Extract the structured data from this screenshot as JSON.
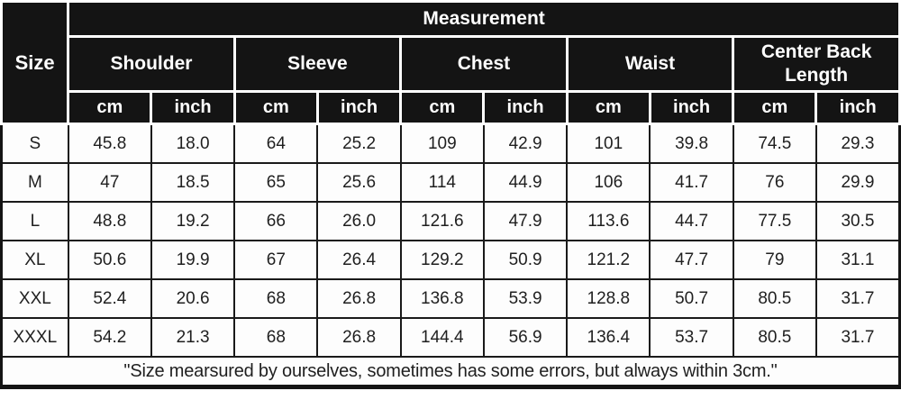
{
  "colors": {
    "header_bg": "#141414",
    "header_text": "#ffffff",
    "grid_line": "#1a1a1a",
    "cell_bg": "#fdfdfd",
    "cell_text": "#1f1f1f"
  },
  "size_table": {
    "corner_label": "Size",
    "title": "Measurement",
    "groups": [
      {
        "label": "Shoulder"
      },
      {
        "label": "Sleeve"
      },
      {
        "label": "Chest"
      },
      {
        "label": "Waist"
      },
      {
        "label": "Center Back Length"
      }
    ],
    "units": [
      "cm",
      "inch",
      "cm",
      "inch",
      "cm",
      "inch",
      "cm",
      "inch",
      "cm",
      "inch"
    ],
    "rows": [
      {
        "size": "S",
        "values": [
          "45.8",
          "18.0",
          "64",
          "25.2",
          "109",
          "42.9",
          "101",
          "39.8",
          "74.5",
          "29.3"
        ]
      },
      {
        "size": "M",
        "values": [
          "47",
          "18.5",
          "65",
          "25.6",
          "114",
          "44.9",
          "106",
          "41.7",
          "76",
          "29.9"
        ]
      },
      {
        "size": "L",
        "values": [
          "48.8",
          "19.2",
          "66",
          "26.0",
          "121.6",
          "47.9",
          "113.6",
          "44.7",
          "77.5",
          "30.5"
        ]
      },
      {
        "size": "XL",
        "values": [
          "50.6",
          "19.9",
          "67",
          "26.4",
          "129.2",
          "50.9",
          "121.2",
          "47.7",
          "79",
          "31.1"
        ]
      },
      {
        "size": "XXL",
        "values": [
          "52.4",
          "20.6",
          "68",
          "26.8",
          "136.8",
          "53.9",
          "128.8",
          "50.7",
          "80.5",
          "31.7"
        ]
      },
      {
        "size": "XXXL",
        "values": [
          "54.2",
          "21.3",
          "68",
          "26.8",
          "144.4",
          "56.9",
          "136.4",
          "53.7",
          "80.5",
          "31.7"
        ]
      }
    ],
    "footnote": "\"Size mearsured by ourselves, sometimes has some errors, but always within 3cm.\""
  },
  "chart_data": {
    "type": "table",
    "title": "Measurement",
    "row_header": "Size",
    "column_groups": [
      "Shoulder",
      "Sleeve",
      "Chest",
      "Waist",
      "Center Back Length"
    ],
    "units_per_group": [
      "cm",
      "inch"
    ],
    "columns": [
      "Size",
      "Shoulder cm",
      "Shoulder inch",
      "Sleeve cm",
      "Sleeve inch",
      "Chest cm",
      "Chest inch",
      "Waist cm",
      "Waist inch",
      "Center Back Length cm",
      "Center Back Length inch"
    ],
    "rows": [
      [
        "S",
        45.8,
        18.0,
        64,
        25.2,
        109,
        42.9,
        101,
        39.8,
        74.5,
        29.3
      ],
      [
        "M",
        47,
        18.5,
        65,
        25.6,
        114,
        44.9,
        106,
        41.7,
        76,
        29.9
      ],
      [
        "L",
        48.8,
        19.2,
        66,
        26.0,
        121.6,
        47.9,
        113.6,
        44.7,
        77.5,
        30.5
      ],
      [
        "XL",
        50.6,
        19.9,
        67,
        26.4,
        129.2,
        50.9,
        121.2,
        47.7,
        79,
        31.1
      ],
      [
        "XXL",
        52.4,
        20.6,
        68,
        26.8,
        136.8,
        53.9,
        128.8,
        50.7,
        80.5,
        31.7
      ],
      [
        "XXXL",
        54.2,
        21.3,
        68,
        26.8,
        144.4,
        56.9,
        136.4,
        53.7,
        80.5,
        31.7
      ]
    ],
    "footnote": "\"Size mearsured by ourselves, sometimes has some errors, but always within 3cm.\""
  }
}
